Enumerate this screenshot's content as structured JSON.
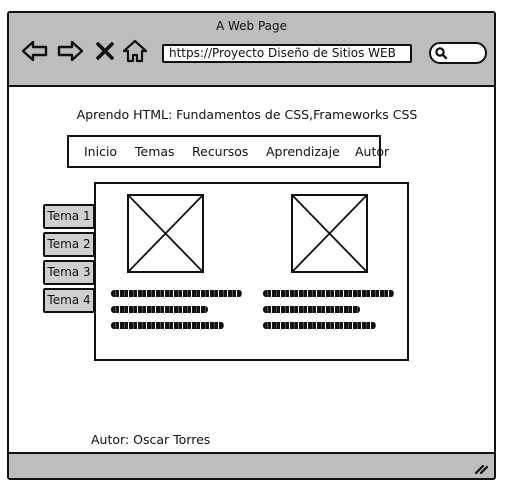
{
  "window": {
    "title": "A Web Page",
    "url": "https://Proyecto Diseño de Sitios WEB"
  },
  "toolbar": {
    "icons": [
      "back-arrow-icon",
      "forward-arrow-icon",
      "close-x-icon",
      "home-icon",
      "search-icon"
    ]
  },
  "page": {
    "heading": "Aprendo HTML: Fundamentos de CSS,Frameworks CSS",
    "nav": [
      "Inicio",
      "Temas",
      "Recursos",
      "Aprendizaje",
      "Autor"
    ],
    "side_tabs": [
      "Tema 1",
      "Tema 2",
      "Tema 3",
      "Tema 4"
    ],
    "author": "Autor: Oscar Torres"
  },
  "colors": {
    "chrome": "#bdbdbd",
    "tab_fill": "#cfcfcf",
    "ink": "#111111"
  }
}
